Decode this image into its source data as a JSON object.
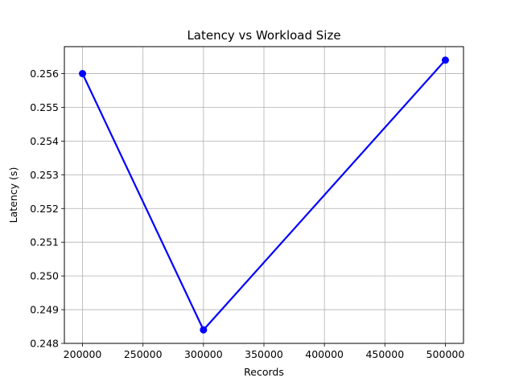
{
  "chart_data": {
    "type": "line",
    "title": "Latency vs Workload Size",
    "xlabel": "Records",
    "ylabel": "Latency (s)",
    "x": [
      200000,
      300000,
      500000
    ],
    "series": [
      {
        "values": [
          0.256,
          0.2484,
          0.2564
        ],
        "color": "#0000ff",
        "marker": "circle"
      }
    ],
    "xlim": [
      185000,
      515000
    ],
    "ylim": [
      0.248,
      0.2568
    ],
    "xticks": [
      200000,
      250000,
      300000,
      350000,
      400000,
      450000,
      500000
    ],
    "yticks": [
      0.248,
      0.249,
      0.25,
      0.251,
      0.252,
      0.253,
      0.254,
      0.255,
      0.256
    ],
    "xtick_labels": [
      "200000",
      "250000",
      "300000",
      "350000",
      "400000",
      "450000",
      "500000"
    ],
    "ytick_labels": [
      "0.248",
      "0.249",
      "0.250",
      "0.251",
      "0.252",
      "0.253",
      "0.254",
      "0.255",
      "0.256"
    ],
    "grid": true,
    "legend": false
  }
}
